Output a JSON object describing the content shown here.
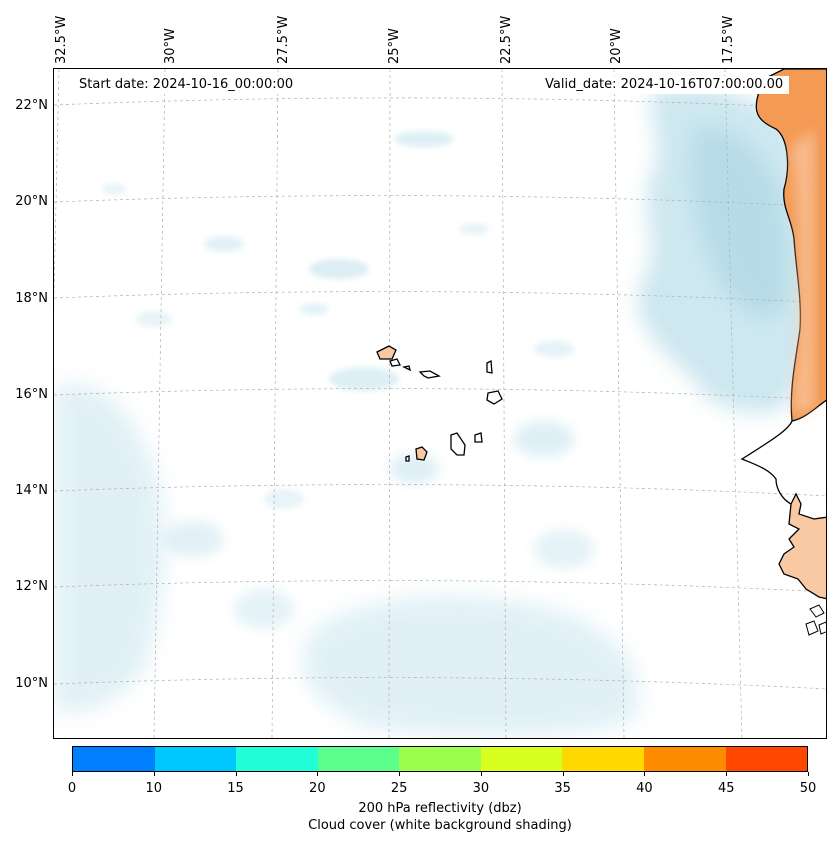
{
  "header": {
    "start_date": "Start date: 2024-10-16_00:00:00",
    "valid_date": "Valid_date: 2024-10-16T07:00:00.00"
  },
  "map": {
    "lon_labels": [
      "32.5°W",
      "30°W",
      "27.5°W",
      "25°W",
      "22.5°W",
      "20°W",
      "17.5°W"
    ],
    "lat_labels": [
      "22°N",
      "20°N",
      "18°N",
      "16°N",
      "14°N",
      "12°N",
      "10°N"
    ],
    "gridlines": "dashed",
    "features": [
      "cape-verde-islands",
      "west-african-coastline"
    ]
  },
  "colorbar": {
    "ticks": [
      "0",
      "10",
      "15",
      "20",
      "25",
      "30",
      "35",
      "40",
      "45",
      "50"
    ],
    "colors": [
      "#0080ff",
      "#00c8ff",
      "#22ffd8",
      "#5cff8c",
      "#9cff50",
      "#d8ff20",
      "#ffd800",
      "#ff8c00",
      "#ff4800"
    ],
    "label": "200 hPa reflectivity (dbz)",
    "sublabel": "Cloud cover (white background shading)"
  },
  "colors": {
    "cloud": "#b5dce8",
    "land_warm": "#f39a55",
    "land_light": "#f9c9a4"
  }
}
